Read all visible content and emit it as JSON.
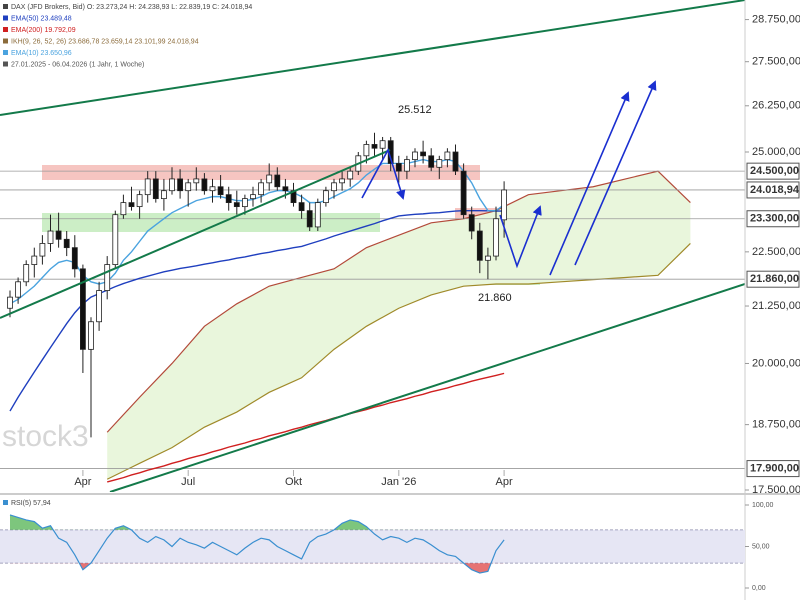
{
  "chart_data": {
    "type": "candlestick",
    "legend": [
      {
        "text": "DAX (JFD Brokers, Bid)  O: 23.273,24  H: 24.238,93  L: 22.839,19  C: 24.018,94",
        "color": "#444444"
      },
      {
        "text": "EMA(50) 23.489,48",
        "color": "#1f3fbf"
      },
      {
        "text": "EMA(200) 19.792,09",
        "color": "#d02020"
      },
      {
        "text": "IKH(9, 26, 52, 26) 23.686,78 23.659,14 23.101,99 24.018,94",
        "color": "#8b6b3a"
      },
      {
        "text": "EMA(10) 23.650,96",
        "color": "#4aa3df"
      },
      {
        "text": "27.01.2025 - 06.04.2026 (1 Jahr, 1 Woche)",
        "color": "#555555"
      }
    ],
    "categories": [
      null,
      null,
      null,
      null,
      null,
      null,
      null,
      null,
      null,
      "Apr",
      null,
      null,
      null,
      null,
      null,
      null,
      null,
      null,
      null,
      null,
      null,
      null,
      "Jul",
      null,
      null,
      null,
      null,
      null,
      null,
      null,
      null,
      null,
      null,
      null,
      null,
      "Okt",
      null,
      null,
      null,
      null,
      null,
      null,
      null,
      null,
      null,
      null,
      null,
      null,
      "Jan '26",
      null,
      null,
      null,
      null,
      null,
      null,
      null,
      null,
      null,
      null,
      null,
      null,
      "Apr"
    ],
    "open": [
      21200,
      21450,
      21800,
      22200,
      22400,
      22700,
      23000,
      22800,
      22600,
      22100,
      20300,
      20900,
      21600,
      22200,
      23400,
      23700,
      23600,
      23900,
      24300,
      23800,
      24000,
      24300,
      24000,
      24200,
      24300,
      24000,
      24100,
      23900,
      23700,
      23600,
      23800,
      23900,
      24200,
      24400,
      24100,
      24000,
      23700,
      23500,
      23100,
      23700,
      24000,
      24200,
      24300,
      24500,
      24900,
      25200,
      25100,
      25300,
      24700,
      24500,
      24800,
      25000,
      24900,
      24600,
      24800,
      25000,
      24500,
      23400,
      23000,
      22300,
      22400,
      23273.24
    ],
    "high": [
      21600,
      21900,
      22300,
      22600,
      22900,
      23400,
      23450,
      23000,
      22900,
      22200,
      21000,
      21800,
      22400,
      23500,
      23900,
      24100,
      24000,
      24500,
      24500,
      24300,
      24600,
      24550,
      24300,
      24600,
      24450,
      24300,
      24400,
      24100,
      24000,
      23900,
      24100,
      24300,
      24700,
      24600,
      24300,
      24200,
      23900,
      23700,
      23800,
      24100,
      24300,
      24500,
      24600,
      25000,
      25300,
      25512,
      25400,
      25400,
      24900,
      24900,
      25100,
      25300,
      25100,
      24900,
      25100,
      25200,
      24700,
      23600,
      23200,
      22600,
      23600,
      24238.93
    ],
    "low": [
      21000,
      21300,
      21700,
      21900,
      22200,
      22500,
      22600,
      22400,
      21900,
      19800,
      18500,
      20700,
      21400,
      22100,
      23300,
      23500,
      23300,
      23700,
      23700,
      23500,
      23900,
      23800,
      23600,
      24000,
      23900,
      23700,
      23800,
      23500,
      23400,
      23400,
      23600,
      23700,
      24000,
      24000,
      23800,
      23600,
      23300,
      23000,
      23000,
      23600,
      23800,
      24000,
      24100,
      24400,
      24700,
      24900,
      24800,
      24500,
      24200,
      24300,
      24600,
      24700,
      24500,
      24300,
      24600,
      24400,
      23300,
      22800,
      22000,
      21860,
      22300,
      22839.19
    ],
    "close": [
      21450,
      21800,
      22200,
      22400,
      22700,
      23000,
      22800,
      22600,
      22100,
      20300,
      20900,
      21600,
      22200,
      23400,
      23700,
      23600,
      23900,
      24300,
      23800,
      24000,
      24300,
      24000,
      24200,
      24300,
      24000,
      24100,
      23900,
      23700,
      23600,
      23800,
      23900,
      24200,
      24400,
      24100,
      24000,
      23700,
      23500,
      23100,
      23700,
      24000,
      24200,
      24300,
      24500,
      24900,
      25200,
      25100,
      25300,
      24700,
      24500,
      24800,
      25000,
      24900,
      24600,
      24800,
      25000,
      24500,
      23400,
      23000,
      22300,
      22400,
      23300,
      24018.94
    ],
    "up_color": "#ffffff",
    "down_color": "#111111",
    "overlays": [
      {
        "color": "#d02020",
        "values": [
          null,
          null,
          null,
          null,
          null,
          null,
          null,
          null,
          null,
          null,
          null,
          null,
          17650,
          17690,
          17730,
          17780,
          17820,
          17870,
          17910,
          17950,
          18000,
          18040,
          18090,
          18130,
          18170,
          18220,
          18260,
          18310,
          18350,
          18390,
          18440,
          18480,
          18530,
          18570,
          18610,
          18660,
          18700,
          18750,
          18790,
          18830,
          18880,
          18920,
          18970,
          19010,
          19050,
          19100,
          19140,
          19190,
          19230,
          19270,
          19320,
          19360,
          19410,
          19450,
          19490,
          19540,
          19580,
          19630,
          19670,
          19710,
          19750,
          19792.09
        ]
      },
      {
        "color": "#1f3fbf",
        "values": [
          19020,
          19300,
          19560,
          19820,
          20080,
          20340,
          20600,
          20860,
          21100,
          21300,
          21450,
          21530,
          21610,
          21690,
          21760,
          21820,
          21880,
          21930,
          21980,
          22030,
          22070,
          22110,
          22140,
          22170,
          22210,
          22240,
          22280,
          22310,
          22350,
          22380,
          22420,
          22460,
          22490,
          22530,
          22560,
          22600,
          22630,
          22690,
          22750,
          22810,
          22880,
          22940,
          23000,
          23060,
          23120,
          23180,
          23250,
          23310,
          23370,
          23390,
          23410,
          23420,
          23440,
          23450,
          23470,
          23490,
          23500,
          23500,
          23500,
          23495,
          23490,
          23489.48
        ]
      },
      {
        "color": "#4aa3df",
        "values": [
          21300,
          21400,
          21550,
          21700,
          21900,
          22100,
          22250,
          22300,
          22250,
          21950,
          21800,
          21750,
          21800,
          22000,
          22300,
          22500,
          22750,
          23000,
          23150,
          23300,
          23450,
          23550,
          23650,
          23750,
          23800,
          23850,
          23850,
          23800,
          23750,
          23750,
          23780,
          23850,
          23950,
          24000,
          24000,
          23950,
          23850,
          23700,
          23700,
          23750,
          23850,
          23950,
          24050,
          24200,
          24400,
          24550,
          24700,
          24700,
          24700,
          24700,
          24750,
          24800,
          24750,
          24750,
          24800,
          24750,
          24500,
          24200,
          23800,
          23500,
          23500,
          23650.96
        ]
      }
    ],
    "cloud": {
      "fill": "#e9f6dc",
      "upper_color": "#b34a3a",
      "lower_color": "#a08a2a",
      "span_a": [
        18600,
        19300,
        20000,
        20800,
        21300,
        21700,
        21900,
        22100,
        22600,
        22900,
        23200,
        23300,
        23500,
        23900,
        24000,
        24100,
        24300,
        24500,
        23700
      ],
      "span_b": [
        17700,
        18000,
        18300,
        18700,
        19000,
        19400,
        19700,
        20300,
        20800,
        21200,
        21500,
        21700,
        21750,
        21750,
        21800,
        21850,
        21900,
        21950,
        22700
      ]
    },
    "log_scale": true,
    "ylim": [
      17500,
      29350
    ],
    "yticks": [
      {
        "value": 28750,
        "label": "28.750,00"
      },
      {
        "value": 27500,
        "label": "27.500,00"
      },
      {
        "value": 26250,
        "label": "26.250,00"
      },
      {
        "value": 25000,
        "label": "25.000,00"
      },
      {
        "value": 22500,
        "label": "22.500,00"
      },
      {
        "value": 21250,
        "label": "21.250,00"
      },
      {
        "value": 20000,
        "label": "20.000,00"
      },
      {
        "value": 18750,
        "label": "18.750,00"
      },
      {
        "value": 17500,
        "label": "17.500,00"
      }
    ],
    "levels": [
      {
        "value": 24500,
        "label": "24.500,00"
      },
      {
        "value": 24018.94,
        "label": "24.018,94"
      },
      {
        "value": 23300,
        "label": "23.300,00"
      },
      {
        "value": 21860,
        "label": "21.860,00"
      },
      {
        "value": 17900,
        "label": "17.900,00"
      }
    ],
    "annotations": [
      "25.512",
      "21.860"
    ],
    "watermark": "stock3",
    "rsi": {
      "title": "RSI(5) 57,94",
      "color": "#3a8fd0",
      "values": [
        88,
        85,
        82,
        80,
        72,
        75,
        60,
        55,
        40,
        22,
        30,
        45,
        60,
        72,
        75,
        70,
        60,
        55,
        62,
        58,
        50,
        60,
        55,
        52,
        48,
        55,
        50,
        45,
        40,
        48,
        55,
        60,
        58,
        50,
        45,
        40,
        35,
        55,
        62,
        65,
        70,
        78,
        82,
        80,
        74,
        65,
        58,
        62,
        60,
        55,
        60,
        58,
        52,
        45,
        40,
        38,
        30,
        22,
        18,
        20,
        45,
        57.94
      ],
      "ylim": [
        0,
        100
      ],
      "yticks": [
        {
          "value": 100,
          "label": "100,00"
        },
        {
          "value": 50,
          "label": "50,00"
        },
        {
          "value": 0,
          "label": "0,00"
        }
      ],
      "bands": [
        30,
        70
      ]
    }
  }
}
